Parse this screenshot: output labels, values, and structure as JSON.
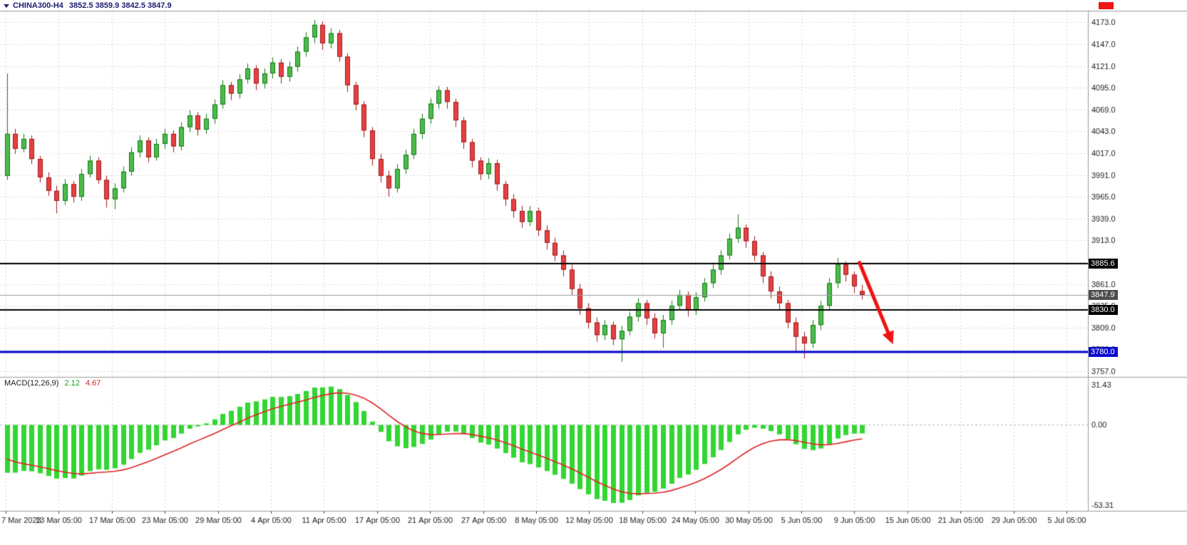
{
  "header": {
    "symbol_period": "CHINA300-H4",
    "ohlc": "3852.5 3859.9 3842.5 3847.9"
  },
  "indicator_panel": {
    "label": "MACD(12,26,9)",
    "value_main": "2.12",
    "value_signal": "4.67"
  },
  "chart_data": {
    "type": "candlestick",
    "symbol": "CHINA300",
    "timeframe": "H4",
    "title": "CHINA300-H4 3852.5 3859.9 3842.5 3847.9",
    "price_view": {
      "top": 4186,
      "bottom": 3751
    },
    "price_axis": {
      "first": 3757,
      "last": 4173,
      "step": 26
    },
    "time_labels": [
      "7 Mar 2023",
      "13 Mar 05:00",
      "17 Mar 05:00",
      "23 Mar 05:00",
      "29 Mar 05:00",
      "4 Apr 05:00",
      "11 Apr 05:00",
      "17 Apr 05:00",
      "21 Apr 05:00",
      "27 Apr 05:00",
      "8 May 05:00",
      "12 May 05:00",
      "18 May 05:00",
      "24 May 05:00",
      "30 May 05:00",
      "5 Jun 05:00",
      "9 Jun 05:00",
      "15 Jun 05:00",
      "21 Jun 05:00",
      "29 Jun 05:00",
      "5 Jul 05:00"
    ],
    "candles": [
      [
        3990,
        4112,
        3985,
        4040
      ],
      [
        4040,
        4046,
        4016,
        4022
      ],
      [
        4022,
        4040,
        4018,
        4034
      ],
      [
        4034,
        4038,
        4004,
        4010
      ],
      [
        4010,
        4014,
        3982,
        3988
      ],
      [
        3988,
        3994,
        3966,
        3972
      ],
      [
        3972,
        3978,
        3945,
        3960
      ],
      [
        3960,
        3986,
        3955,
        3980
      ],
      [
        3980,
        3984,
        3958,
        3965
      ],
      [
        3965,
        3998,
        3960,
        3992
      ],
      [
        3992,
        4014,
        3988,
        4008
      ],
      [
        4008,
        4012,
        3980,
        3985
      ],
      [
        3985,
        3990,
        3952,
        3962
      ],
      [
        3962,
        3981,
        3950,
        3975
      ],
      [
        3975,
        4001,
        3970,
        3995
      ],
      [
        3995,
        4024,
        3990,
        4018
      ],
      [
        4018,
        4038,
        4012,
        4032
      ],
      [
        4032,
        4036,
        4006,
        4012
      ],
      [
        4012,
        4034,
        4008,
        4028
      ],
      [
        4028,
        4046,
        4022,
        4040
      ],
      [
        4040,
        4044,
        4018,
        4025
      ],
      [
        4025,
        4054,
        4020,
        4048
      ],
      [
        4048,
        4068,
        4042,
        4062
      ],
      [
        4062,
        4066,
        4038,
        4045
      ],
      [
        4045,
        4064,
        4040,
        4058
      ],
      [
        4058,
        4081,
        4052,
        4075
      ],
      [
        4075,
        4104,
        4070,
        4098
      ],
      [
        4098,
        4102,
        4080,
        4088
      ],
      [
        4088,
        4111,
        4082,
        4105
      ],
      [
        4105,
        4124,
        4100,
        4118
      ],
      [
        4118,
        4122,
        4092,
        4100
      ],
      [
        4100,
        4118,
        4094,
        4112
      ],
      [
        4112,
        4131,
        4106,
        4125
      ],
      [
        4125,
        4129,
        4100,
        4108
      ],
      [
        4108,
        4126,
        4102,
        4120
      ],
      [
        4120,
        4144,
        4114,
        4138
      ],
      [
        4138,
        4161,
        4132,
        4155
      ],
      [
        4155,
        4176,
        4148,
        4170
      ],
      [
        4170,
        4174,
        4140,
        4148
      ],
      [
        4148,
        4166,
        4142,
        4160
      ],
      [
        4160,
        4164,
        4126,
        4132
      ],
      [
        4132,
        4136,
        4090,
        4098
      ],
      [
        4098,
        4102,
        4068,
        4075
      ],
      [
        4075,
        4079,
        4036,
        4044
      ],
      [
        4044,
        4048,
        4002,
        4010
      ],
      [
        4010,
        4016,
        3982,
        3990
      ],
      [
        3990,
        3996,
        3965,
        3975
      ],
      [
        3975,
        4004,
        3970,
        3998
      ],
      [
        3998,
        4021,
        3992,
        4015
      ],
      [
        4015,
        4046,
        4010,
        4040
      ],
      [
        4040,
        4064,
        4034,
        4058
      ],
      [
        4058,
        4082,
        4052,
        4076
      ],
      [
        4076,
        4097,
        4070,
        4092
      ],
      [
        4092,
        4096,
        4070,
        4078
      ],
      [
        4078,
        4082,
        4048,
        4056
      ],
      [
        4056,
        4060,
        4022,
        4030
      ],
      [
        4030,
        4034,
        4000,
        4008
      ],
      [
        4008,
        4012,
        3985,
        3992
      ],
      [
        3992,
        4011,
        3986,
        4005
      ],
      [
        4005,
        4009,
        3972,
        3980
      ],
      [
        3980,
        3984,
        3954,
        3962
      ],
      [
        3962,
        3968,
        3940,
        3948
      ],
      [
        3948,
        3954,
        3928,
        3935
      ],
      [
        3935,
        3954,
        3930,
        3948
      ],
      [
        3948,
        3952,
        3918,
        3925
      ],
      [
        3925,
        3931,
        3902,
        3910
      ],
      [
        3910,
        3916,
        3888,
        3895
      ],
      [
        3895,
        3901,
        3870,
        3878
      ],
      [
        3878,
        3884,
        3848,
        3855
      ],
      [
        3855,
        3861,
        3824,
        3832
      ],
      [
        3832,
        3838,
        3808,
        3815
      ],
      [
        3815,
        3821,
        3792,
        3800
      ],
      [
        3800,
        3818,
        3794,
        3812
      ],
      [
        3812,
        3816,
        3788,
        3795
      ],
      [
        3795,
        3811,
        3768,
        3805
      ],
      [
        3805,
        3828,
        3800,
        3822
      ],
      [
        3822,
        3844,
        3816,
        3838
      ],
      [
        3838,
        3842,
        3812,
        3820
      ],
      [
        3820,
        3826,
        3796,
        3802
      ],
      [
        3802,
        3824,
        3785,
        3818
      ],
      [
        3818,
        3841,
        3812,
        3835
      ],
      [
        3835,
        3854,
        3830,
        3848
      ],
      [
        3848,
        3852,
        3822,
        3830
      ],
      [
        3830,
        3851,
        3824,
        3845
      ],
      [
        3845,
        3868,
        3840,
        3862
      ],
      [
        3862,
        3884,
        3856,
        3878
      ],
      [
        3878,
        3901,
        3872,
        3895
      ],
      [
        3895,
        3921,
        3890,
        3915
      ],
      [
        3915,
        3944,
        3910,
        3928
      ],
      [
        3928,
        3932,
        3904,
        3912
      ],
      [
        3912,
        3918,
        3888,
        3895
      ],
      [
        3895,
        3899,
        3862,
        3870
      ],
      [
        3870,
        3876,
        3844,
        3852
      ],
      [
        3852,
        3858,
        3830,
        3838
      ],
      [
        3838,
        3842,
        3808,
        3815
      ],
      [
        3815,
        3821,
        3780,
        3798
      ],
      [
        3798,
        3804,
        3772,
        3790
      ],
      [
        3790,
        3818,
        3785,
        3812
      ],
      [
        3812,
        3841,
        3806,
        3835
      ],
      [
        3835,
        3868,
        3830,
        3862
      ],
      [
        3862,
        3892,
        3856,
        3884
      ],
      [
        3884,
        3888,
        3864,
        3872
      ],
      [
        3872,
        3876,
        3850,
        3858
      ],
      [
        3852.5,
        3859.9,
        3842.5,
        3847.9
      ]
    ],
    "hlines": [
      {
        "price": 3885.6,
        "color": "#000000",
        "width": 2
      },
      {
        "price": 3830.0,
        "color": "#000000",
        "width": 2
      },
      {
        "price": 3780.0,
        "color": "#0000cc",
        "width": 3
      }
    ],
    "current_price": {
      "value": 3847.9,
      "line_color": "#9a9a9a"
    },
    "badges": [
      {
        "text": "3885.6",
        "price": 3885.6,
        "bg": "#000000"
      },
      {
        "text": "3847.9",
        "price": 3847.9,
        "bg": "#4d4d4d"
      },
      {
        "text": "3830.0",
        "price": 3830.0,
        "bg": "#000000"
      },
      {
        "text": "3780.0",
        "price": 3780.0,
        "bg": "#0a0acd"
      }
    ],
    "arrow": {
      "from_bar": 102.6,
      "from_price": 3888,
      "to_bar": 106.7,
      "to_price": 3789,
      "color": "#f01212"
    },
    "macd": {
      "params": [
        12,
        26,
        9
      ],
      "axis_labels": [
        "31.43",
        "0.00",
        "-53.31"
      ],
      "ylim": [
        -53.31,
        31.43
      ],
      "hist_color": "#33d633",
      "signal_color": "#e02424",
      "seed": {
        "ema12": 4060,
        "ema26": 4100,
        "signal": -25
      }
    },
    "colors": {
      "bull_fill": "#4cbb4c",
      "bull_stroke": "#157a15",
      "bear_fill": "#e64040",
      "bear_stroke": "#9e1c1c",
      "grid": "#d8d8d8",
      "separator": "#9a9a9a",
      "axis_text": "#1c1c1c",
      "background": "#ffffff"
    }
  }
}
